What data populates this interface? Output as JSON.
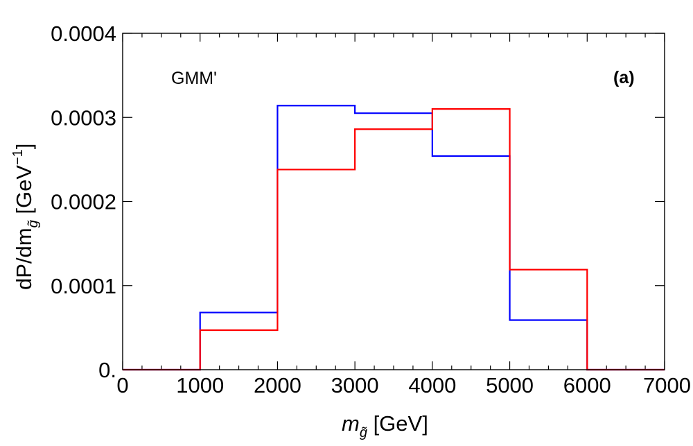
{
  "chart_data": {
    "type": "histogram",
    "bin_edges": [
      0,
      1000,
      2000,
      3000,
      4000,
      5000,
      6000,
      7000
    ],
    "series": [
      {
        "name": "blue",
        "color": "#0000ff",
        "values": [
          0,
          6.8e-05,
          0.000314,
          0.000305,
          0.000254,
          5.9e-05,
          0
        ]
      },
      {
        "name": "red",
        "color": "#ff0000",
        "values": [
          0,
          4.7e-05,
          0.000238,
          0.000286,
          0.00031,
          0.000119,
          0
        ]
      }
    ],
    "xlim": [
      0,
      7000
    ],
    "ylim": [
      0,
      0.0004
    ],
    "x_ticks": [
      {
        "value": 0,
        "label": "0"
      },
      {
        "value": 1000,
        "label": "1000"
      },
      {
        "value": 2000,
        "label": "2000"
      },
      {
        "value": 3000,
        "label": "3000"
      },
      {
        "value": 4000,
        "label": "4000"
      },
      {
        "value": 5000,
        "label": "5000"
      },
      {
        "value": 6000,
        "label": "6000"
      },
      {
        "value": 7000,
        "label": "7000"
      }
    ],
    "y_ticks": [
      {
        "value": 0,
        "label": "0."
      },
      {
        "value": 0.0001,
        "label": "0.0001"
      },
      {
        "value": 0.0002,
        "label": "0.0002"
      },
      {
        "value": 0.0003,
        "label": "0.0003"
      },
      {
        "value": 0.0004,
        "label": "0.0004"
      }
    ],
    "xlabel": {
      "symbol": "m",
      "subscript": "g̃",
      "unit": " [GeV]"
    },
    "ylabel": {
      "prefix": "dP/dm",
      "subscript": "g̃",
      "unit_open": " [GeV",
      "unit_sup": "−1",
      "unit_close": "]"
    },
    "annotations": {
      "model": "GMM'",
      "panel": "(a)"
    }
  }
}
